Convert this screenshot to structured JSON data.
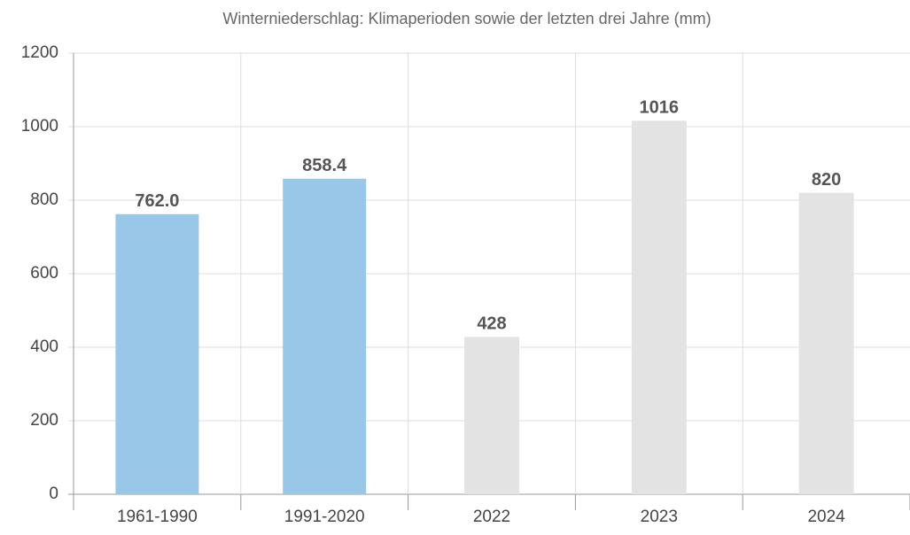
{
  "chart_data": {
    "type": "bar",
    "title": "Winterniederschlag: Klimaperioden sowie der letzten drei Jahre (mm)",
    "categories": [
      "1961-1990",
      "1991-2020",
      "2022",
      "2023",
      "2024"
    ],
    "values": [
      762,
      858.4,
      428,
      1016,
      820
    ],
    "value_labels": [
      "762.0",
      "858.4",
      "428",
      "1016",
      "820"
    ],
    "colors": [
      "#98c7e8",
      "#98c7e8",
      "#e3e3e3",
      "#e3e3e3",
      "#e3e3e3"
    ],
    "ylim": [
      0,
      1200
    ],
    "yticks": [
      0,
      200,
      400,
      600,
      800,
      1000,
      1200
    ],
    "grid": true
  }
}
